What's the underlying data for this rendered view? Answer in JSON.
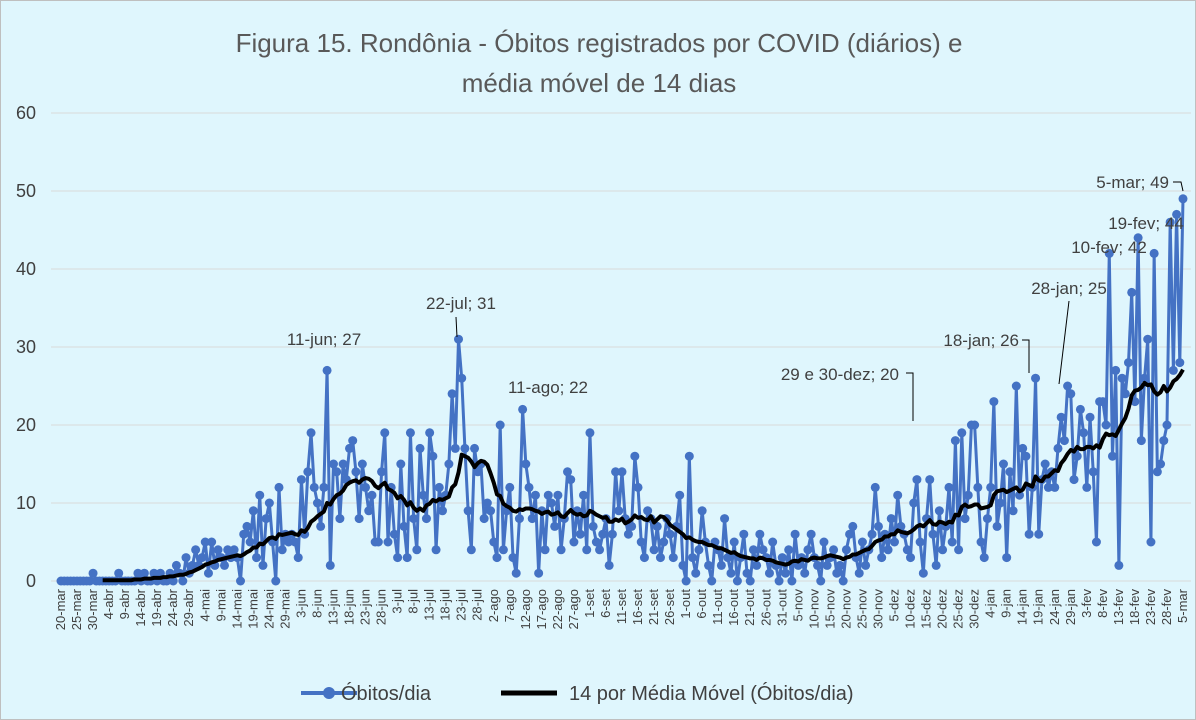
{
  "chart_data": {
    "type": "line",
    "title": "Figura 15. Rondônia - Óbitos registrados por COVID (diários) e média móvel de 14 dias",
    "categories": [
      "20-mar",
      null,
      null,
      null,
      null,
      "25-mar",
      null,
      null,
      null,
      null,
      "30-mar",
      null,
      null,
      null,
      null,
      "4-abr",
      null,
      null,
      null,
      null,
      "9-abr",
      null,
      null,
      null,
      null,
      "14-abr",
      null,
      null,
      null,
      null,
      "19-abr",
      null,
      null,
      null,
      null,
      "24-abr",
      null,
      null,
      null,
      null,
      "29-abr",
      null,
      null,
      null,
      null,
      "4-mai",
      null,
      null,
      null,
      null,
      "9-mai",
      null,
      null,
      null,
      null,
      "14-mai",
      null,
      null,
      null,
      null,
      "19-mai",
      null,
      null,
      null,
      null,
      "24-mai",
      null,
      null,
      null,
      null,
      "29-mai",
      null,
      null,
      null,
      null,
      "3-jun",
      null,
      null,
      null,
      null,
      "8-jun",
      null,
      null,
      null,
      null,
      "13-jun",
      null,
      null,
      null,
      null,
      "18-jun",
      null,
      null,
      null,
      null,
      "23-jun",
      null,
      null,
      null,
      null,
      "28-jun",
      null,
      null,
      null,
      null,
      "3-jul",
      null,
      null,
      null,
      null,
      "8-jul",
      null,
      null,
      null,
      null,
      "13-jul",
      null,
      null,
      null,
      null,
      "18-jul",
      null,
      null,
      null,
      null,
      "23-jul",
      null,
      null,
      null,
      null,
      "28-jul",
      null,
      null,
      null,
      null,
      "2-ago",
      null,
      null,
      null,
      null,
      "7-ago",
      null,
      null,
      null,
      null,
      "12-ago",
      null,
      null,
      null,
      null,
      "17-ago",
      null,
      null,
      null,
      null,
      "22-ago",
      null,
      null,
      null,
      null,
      "27-ago",
      null,
      null,
      null,
      null,
      "1-set",
      null,
      null,
      null,
      null,
      "6-set",
      null,
      null,
      null,
      null,
      "11-set",
      null,
      null,
      null,
      null,
      "16-set",
      null,
      null,
      null,
      null,
      "21-set",
      null,
      null,
      null,
      null,
      "26-set",
      null,
      null,
      null,
      null,
      "1-out",
      null,
      null,
      null,
      null,
      "6-out",
      null,
      null,
      null,
      null,
      "11-out",
      null,
      null,
      null,
      null,
      "16-out",
      null,
      null,
      null,
      null,
      "21-out",
      null,
      null,
      null,
      null,
      "26-out",
      null,
      null,
      null,
      null,
      "31-out",
      null,
      null,
      null,
      null,
      "5-nov",
      null,
      null,
      null,
      null,
      "10-nov",
      null,
      null,
      null,
      null,
      "15-nov",
      null,
      null,
      null,
      null,
      "20-nov",
      null,
      null,
      null,
      null,
      "25-nov",
      null,
      null,
      null,
      null,
      "30-nov",
      null,
      null,
      null,
      null,
      "5-dez",
      null,
      null,
      null,
      null,
      "10-dez",
      null,
      null,
      null,
      null,
      "15-dez",
      null,
      null,
      null,
      null,
      "20-dez",
      null,
      null,
      null,
      null,
      "25-dez",
      null,
      null,
      null,
      null,
      "30-dez",
      null,
      null,
      null,
      null,
      "4-jan",
      null,
      null,
      null,
      null,
      "9-jan",
      null,
      null,
      null,
      null,
      "14-jan",
      null,
      null,
      null,
      null,
      "19-jan",
      null,
      null,
      null,
      null,
      "24-jan",
      null,
      null,
      null,
      null,
      "29-jan",
      null,
      null,
      null,
      null,
      "3-fev",
      null,
      null,
      null,
      null,
      "8-fev",
      null,
      null,
      null,
      null,
      "13-fev",
      null,
      null,
      null,
      null,
      "18-fev",
      null,
      null,
      null,
      null,
      "23-fev",
      null,
      null,
      null,
      null,
      "28-fev",
      null,
      null,
      null,
      null,
      "5-mar"
    ],
    "series": [
      {
        "name": "Óbitos/dia",
        "color": "#4472c4",
        "marker": true,
        "values": [
          0,
          0,
          0,
          0,
          0,
          0,
          0,
          0,
          0,
          0,
          1,
          0,
          0,
          0,
          0,
          0,
          0,
          0,
          1,
          0,
          0,
          0,
          0,
          0,
          1,
          0,
          1,
          0,
          0,
          1,
          0,
          1,
          0,
          0,
          1,
          0,
          2,
          1,
          0,
          3,
          1,
          2,
          4,
          2,
          3,
          5,
          1,
          5,
          2,
          4,
          3,
          2,
          4,
          3,
          4,
          3,
          0,
          6,
          7,
          5,
          9,
          3,
          11,
          2,
          8,
          10,
          5,
          0,
          12,
          4,
          6,
          5,
          6,
          5,
          3,
          13,
          6,
          14,
          19,
          12,
          10,
          7,
          12,
          27,
          2,
          15,
          14,
          8,
          15,
          13,
          17,
          18,
          14,
          8,
          15,
          12,
          9,
          11,
          5,
          5,
          14,
          19,
          5,
          12,
          6,
          3,
          15,
          7,
          3,
          19,
          8,
          4,
          17,
          11,
          8,
          19,
          16,
          4,
          12,
          9,
          11,
          15,
          24,
          17,
          31,
          26,
          17,
          9,
          4,
          17,
          14,
          15,
          8,
          10,
          9,
          5,
          3,
          20,
          4,
          9,
          12,
          3,
          1,
          8,
          22,
          15,
          12,
          8,
          11,
          1,
          9,
          4,
          11,
          10,
          7,
          11,
          4,
          8,
          14,
          13,
          5,
          9,
          6,
          11,
          4,
          19,
          7,
          5,
          4,
          6,
          8,
          2,
          6,
          14,
          9,
          14,
          8,
          6,
          7,
          16,
          12,
          5,
          3,
          9,
          8,
          4,
          7,
          3,
          5,
          8,
          6,
          3,
          7,
          11,
          2,
          0,
          16,
          3,
          1,
          4,
          9,
          5,
          2,
          0,
          5,
          4,
          2,
          8,
          3,
          1,
          5,
          0,
          3,
          6,
          1,
          0,
          4,
          2,
          6,
          4,
          3,
          1,
          5,
          2,
          0,
          3,
          1,
          4,
          0,
          6,
          2,
          3,
          1,
          4,
          6,
          3,
          2,
          0,
          5,
          2,
          3,
          4,
          1,
          2,
          0,
          4,
          6,
          7,
          3,
          1,
          5,
          2,
          4,
          6,
          12,
          7,
          3,
          6,
          4,
          8,
          5,
          11,
          7,
          6,
          4,
          3,
          10,
          13,
          5,
          1,
          8,
          13,
          6,
          2,
          9,
          4,
          7,
          12,
          5,
          18,
          4,
          19,
          8,
          11,
          20,
          20,
          12,
          5,
          3,
          8,
          12,
          23,
          7,
          10,
          15,
          3,
          14,
          9,
          25,
          11,
          17,
          16,
          6,
          12,
          26,
          6,
          13,
          15,
          12,
          14,
          12,
          17,
          21,
          18,
          25,
          24,
          13,
          16,
          22,
          19,
          12,
          21,
          14,
          5,
          23,
          23,
          20,
          42,
          16,
          27,
          2,
          26,
          24,
          28,
          37,
          23,
          44,
          18,
          26,
          31,
          5,
          42,
          14,
          15,
          18,
          20,
          46,
          27,
          47,
          28,
          49
        ]
      },
      {
        "name": "14 por Média Móvel (Óbitos/dia)",
        "color": "#000000",
        "marker": false,
        "values": [
          null,
          null,
          null,
          null,
          null,
          null,
          null,
          null,
          null,
          null,
          null,
          null,
          null,
          0.1,
          0.1,
          0.1,
          0.1,
          0.1,
          0.1,
          0.1,
          0.1,
          0.1,
          0.1,
          0.2,
          0.2,
          0.2,
          0.3,
          0.3,
          0.3,
          0.4,
          0.4,
          0.4,
          0.5,
          0.5,
          0.6,
          0.6,
          0.7,
          0.8,
          0.8,
          0.9,
          1.1,
          1.2,
          1.4,
          1.6,
          1.8,
          2.1,
          2.2,
          2.4,
          2.5,
          2.7,
          2.8,
          2.9,
          3.0,
          3.1,
          3.2,
          3.3,
          3.2,
          3.4,
          3.7,
          3.9,
          4.3,
          4.3,
          4.8,
          4.7,
          5.1,
          5.5,
          5.6,
          5.4,
          6.0,
          5.9,
          6.0,
          6.1,
          6.2,
          6.0,
          5.9,
          6.5,
          6.3,
          6.8,
          7.6,
          7.9,
          8.3,
          8.6,
          8.9,
          10.0,
          9.8,
          10.5,
          11.0,
          11.2,
          11.6,
          12.3,
          12.6,
          12.8,
          12.9,
          12.6,
          13.0,
          13.2,
          13.1,
          12.8,
          12.2,
          11.9,
          12.3,
          12.6,
          11.8,
          11.6,
          11.3,
          10.6,
          10.9,
          10.4,
          9.7,
          10.1,
          9.4,
          9.0,
          9.3,
          9.0,
          9.7,
          9.9,
          10.4,
          10.2,
          10.5,
          10.4,
          10.6,
          10.8,
          12.0,
          12.4,
          13.9,
          16.2,
          16.0,
          15.8,
          15.3,
          14.6,
          15.1,
          15.4,
          15.3,
          14.9,
          13.8,
          12.6,
          11.1,
          10.9,
          9.9,
          9.6,
          9.4,
          9.0,
          8.9,
          9.2,
          9.1,
          9.3,
          9.3,
          9.2,
          9.0,
          8.9,
          8.6,
          8.8,
          8.9,
          8.5,
          8.6,
          8.8,
          8.3,
          8.2,
          8.7,
          9.1,
          8.7,
          8.5,
          8.6,
          8.3,
          8.4,
          9.0,
          8.8,
          8.5,
          8.3,
          8.1,
          8.2,
          7.6,
          7.6,
          7.9,
          7.7,
          8.0,
          7.4,
          7.6,
          7.9,
          8.4,
          8.1,
          8.2,
          7.9,
          7.8,
          8.3,
          7.5,
          7.9,
          8.3,
          8.2,
          7.8,
          7.2,
          6.9,
          6.6,
          6.3,
          6.0,
          5.5,
          5.6,
          5.3,
          5.1,
          5.0,
          5.0,
          4.8,
          4.6,
          4.6,
          4.4,
          4.2,
          4.2,
          4.0,
          3.8,
          3.6,
          3.7,
          3.4,
          3.2,
          3.1,
          3.0,
          2.9,
          2.9,
          2.7,
          3.0,
          2.9,
          2.7,
          2.7,
          2.6,
          2.4,
          2.3,
          2.2,
          2.1,
          2.2,
          2.5,
          2.6,
          2.5,
          2.8,
          2.7,
          2.6,
          2.9,
          3.0,
          2.9,
          2.9,
          3.0,
          3.2,
          3.3,
          3.2,
          3.1,
          3.0,
          2.8,
          3.0,
          3.1,
          3.4,
          3.4,
          3.6,
          3.8,
          4.0,
          4.1,
          4.5,
          5.0,
          5.2,
          5.3,
          5.7,
          5.7,
          6.0,
          6.0,
          6.5,
          6.3,
          6.2,
          6.1,
          6.3,
          6.6,
          7.0,
          7.2,
          7.0,
          7.4,
          7.8,
          7.3,
          7.2,
          7.6,
          7.5,
          7.3,
          7.6,
          7.5,
          8.5,
          8.4,
          9.5,
          9.8,
          9.5,
          9.6,
          9.8,
          9.8,
          9.3,
          9.4,
          9.5,
          9.7,
          11.0,
          11.5,
          11.6,
          11.7,
          11.4,
          11.6,
          11.8,
          12.0,
          11.5,
          11.7,
          12.5,
          12.3,
          12.1,
          13.4,
          12.9,
          12.8,
          13.4,
          13.4,
          13.8,
          14.2,
          14.1,
          15.1,
          15.6,
          16.3,
          16.8,
          16.6,
          17.2,
          16.9,
          16.9,
          17.2,
          17.2,
          17.0,
          17.4,
          17.1,
          18.2,
          18.9,
          18.7,
          18.8,
          18.6,
          19.4,
          20.2,
          20.9,
          22.1,
          23.8,
          24.4,
          24.5,
          24.8,
          25.4,
          25.1,
          25.2,
          24.3,
          23.9,
          24.2,
          25.0,
          24.3,
          24.8,
          25.6,
          25.9,
          26.4,
          27.1
        ]
      }
    ],
    "ylim": [
      0,
      60
    ],
    "yticks": [
      0,
      10,
      20,
      30,
      40,
      50,
      60
    ],
    "grid": true,
    "legend": "bottom",
    "annotations": [
      "11-jun; 27",
      "22-jul; 31",
      "11-ago; 22",
      "29 e 30-dez; 20",
      "18-jan; 26",
      "28-jan; 25",
      "10-fev; 42",
      "19-fev; 44",
      "5-mar; 49"
    ]
  }
}
